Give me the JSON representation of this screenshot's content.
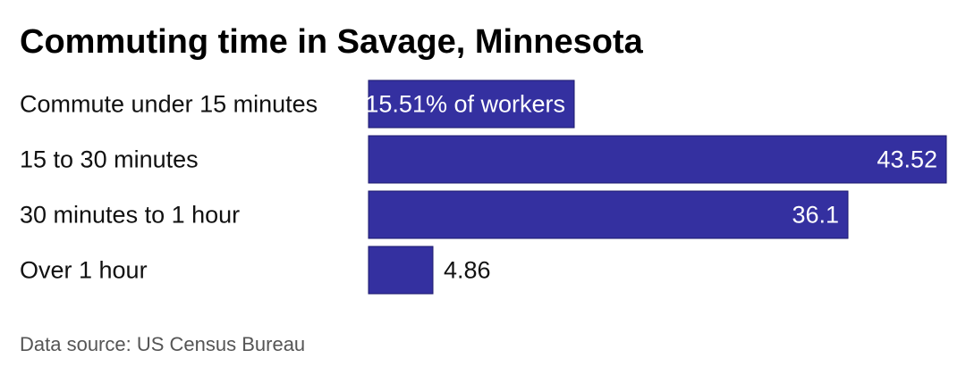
{
  "title": "Commuting time in Savage, Minnesota",
  "source": "Data source: US Census Bureau",
  "colors": {
    "bar": "#3430a0",
    "label_outside": "#111111",
    "label_inside": "#ffffff"
  },
  "chart_data": {
    "type": "bar",
    "orientation": "horizontal",
    "categories": [
      "Commute under 15 minutes",
      "15 to 30 minutes",
      "30 minutes to 1 hour",
      "Over 1 hour"
    ],
    "values": [
      15.51,
      43.52,
      36.1,
      4.86
    ],
    "value_labels": [
      "15.51% of workers",
      "43.52",
      "36.1",
      "4.86"
    ],
    "xlim": [
      0,
      43.52
    ],
    "grid": false,
    "legend": "none"
  }
}
